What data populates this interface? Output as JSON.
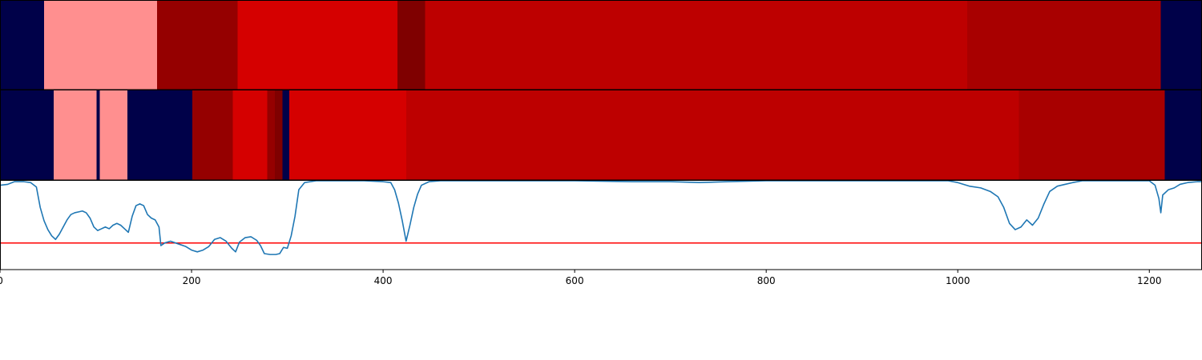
{
  "chart_data": {
    "type": "segmentation-bars-and-line",
    "x_range": [
      0,
      1255
    ],
    "colors": {
      "bg": "#000149",
      "pink": "#ff8f8f",
      "dark": "#950000",
      "bright": "#d50000",
      "maroon": "#7f0000",
      "mid": "#bd0000",
      "deep": "#a80000",
      "line": "#1f77b4",
      "threshold": "#ff0000"
    },
    "bar1": [
      {
        "start": 0,
        "end": 46,
        "color": "bg"
      },
      {
        "start": 46,
        "end": 164,
        "color": "pink"
      },
      {
        "start": 164,
        "end": 248,
        "color": "dark"
      },
      {
        "start": 248,
        "end": 415,
        "color": "bright"
      },
      {
        "start": 415,
        "end": 444,
        "color": "maroon"
      },
      {
        "start": 444,
        "end": 1010,
        "color": "mid"
      },
      {
        "start": 1010,
        "end": 1212,
        "color": "deep"
      },
      {
        "start": 1212,
        "end": 1255,
        "color": "bg"
      }
    ],
    "bar2": [
      {
        "start": 0,
        "end": 56,
        "color": "bg"
      },
      {
        "start": 56,
        "end": 101,
        "color": "pink"
      },
      {
        "start": 101,
        "end": 104,
        "color": "bg"
      },
      {
        "start": 104,
        "end": 133,
        "color": "pink"
      },
      {
        "start": 133,
        "end": 201,
        "color": "bg"
      },
      {
        "start": 201,
        "end": 243,
        "color": "dark"
      },
      {
        "start": 243,
        "end": 279,
        "color": "bright"
      },
      {
        "start": 279,
        "end": 287,
        "color": "dark"
      },
      {
        "start": 287,
        "end": 295,
        "color": "maroon"
      },
      {
        "start": 295,
        "end": 302,
        "color": "bg"
      },
      {
        "start": 302,
        "end": 424,
        "color": "bright"
      },
      {
        "start": 424,
        "end": 1064,
        "color": "mid"
      },
      {
        "start": 1064,
        "end": 1216,
        "color": "deep"
      },
      {
        "start": 1216,
        "end": 1255,
        "color": "bg"
      }
    ],
    "y_range": [
      0,
      1
    ],
    "threshold": 0.3,
    "series": [
      {
        "points": [
          [
            0,
            0.95
          ],
          [
            8,
            0.96
          ],
          [
            15,
            0.99
          ],
          [
            25,
            0.99
          ],
          [
            32,
            0.98
          ],
          [
            38,
            0.93
          ],
          [
            42,
            0.7
          ],
          [
            46,
            0.55
          ],
          [
            50,
            0.45
          ],
          [
            54,
            0.38
          ],
          [
            58,
            0.34
          ],
          [
            62,
            0.4
          ],
          [
            66,
            0.48
          ],
          [
            70,
            0.56
          ],
          [
            74,
            0.62
          ],
          [
            78,
            0.64
          ],
          [
            82,
            0.65
          ],
          [
            86,
            0.66
          ],
          [
            90,
            0.64
          ],
          [
            94,
            0.58
          ],
          [
            98,
            0.48
          ],
          [
            102,
            0.44
          ],
          [
            106,
            0.46
          ],
          [
            110,
            0.48
          ],
          [
            114,
            0.46
          ],
          [
            118,
            0.5
          ],
          [
            122,
            0.52
          ],
          [
            126,
            0.5
          ],
          [
            130,
            0.46
          ],
          [
            134,
            0.42
          ],
          [
            138,
            0.6
          ],
          [
            142,
            0.72
          ],
          [
            146,
            0.74
          ],
          [
            150,
            0.72
          ],
          [
            154,
            0.62
          ],
          [
            158,
            0.58
          ],
          [
            162,
            0.56
          ],
          [
            166,
            0.48
          ],
          [
            168,
            0.27
          ],
          [
            172,
            0.3
          ],
          [
            178,
            0.32
          ],
          [
            186,
            0.29
          ],
          [
            194,
            0.26
          ],
          [
            200,
            0.22
          ],
          [
            206,
            0.2
          ],
          [
            212,
            0.22
          ],
          [
            218,
            0.26
          ],
          [
            224,
            0.34
          ],
          [
            230,
            0.36
          ],
          [
            236,
            0.32
          ],
          [
            242,
            0.24
          ],
          [
            246,
            0.2
          ],
          [
            250,
            0.31
          ],
          [
            256,
            0.36
          ],
          [
            262,
            0.37
          ],
          [
            268,
            0.33
          ],
          [
            272,
            0.27
          ],
          [
            276,
            0.18
          ],
          [
            282,
            0.17
          ],
          [
            288,
            0.17
          ],
          [
            292,
            0.18
          ],
          [
            296,
            0.25
          ],
          [
            300,
            0.24
          ],
          [
            304,
            0.38
          ],
          [
            308,
            0.6
          ],
          [
            312,
            0.9
          ],
          [
            318,
            0.98
          ],
          [
            330,
            1.0
          ],
          [
            380,
            1.0
          ],
          [
            400,
            0.99
          ],
          [
            408,
            0.98
          ],
          [
            412,
            0.9
          ],
          [
            416,
            0.75
          ],
          [
            420,
            0.55
          ],
          [
            424,
            0.32
          ],
          [
            428,
            0.5
          ],
          [
            432,
            0.7
          ],
          [
            436,
            0.85
          ],
          [
            440,
            0.95
          ],
          [
            448,
            0.99
          ],
          [
            460,
            1.0
          ],
          [
            600,
            1.0
          ],
          [
            660,
            0.99
          ],
          [
            700,
            0.99
          ],
          [
            730,
            0.98
          ],
          [
            760,
            0.99
          ],
          [
            800,
            1.0
          ],
          [
            990,
            1.0
          ],
          [
            1000,
            0.98
          ],
          [
            1012,
            0.94
          ],
          [
            1024,
            0.92
          ],
          [
            1034,
            0.88
          ],
          [
            1042,
            0.82
          ],
          [
            1048,
            0.7
          ],
          [
            1054,
            0.52
          ],
          [
            1060,
            0.45
          ],
          [
            1066,
            0.48
          ],
          [
            1072,
            0.56
          ],
          [
            1078,
            0.5
          ],
          [
            1084,
            0.58
          ],
          [
            1090,
            0.74
          ],
          [
            1096,
            0.88
          ],
          [
            1104,
            0.94
          ],
          [
            1112,
            0.96
          ],
          [
            1120,
            0.98
          ],
          [
            1130,
            1.0
          ],
          [
            1200,
            1.0
          ],
          [
            1206,
            0.95
          ],
          [
            1210,
            0.8
          ],
          [
            1212,
            0.64
          ],
          [
            1214,
            0.84
          ],
          [
            1220,
            0.9
          ],
          [
            1226,
            0.92
          ],
          [
            1232,
            0.96
          ],
          [
            1240,
            0.98
          ],
          [
            1250,
            0.99
          ],
          [
            1255,
            0.99
          ]
        ]
      }
    ],
    "x_ticks": [
      0,
      200,
      400,
      600,
      800,
      1000,
      1200
    ],
    "x_tick_labels": [
      "0",
      "200",
      "400",
      "600",
      "800",
      "1000",
      "1200"
    ]
  }
}
